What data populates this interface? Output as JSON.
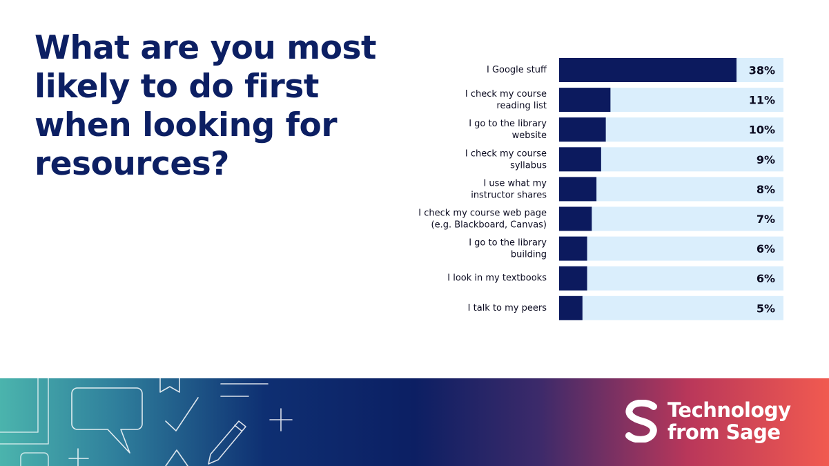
{
  "title": "What are you most likely to do first when looking for resources?",
  "brand": {
    "line1": "Technology",
    "line2": "from Sage"
  },
  "colors": {
    "bar": "#0c1a5e",
    "track": "#daeefc",
    "title": "#0c1f63"
  },
  "chart_data": {
    "type": "bar",
    "orientation": "horizontal",
    "title": "What are you most likely to do first when looking for resources?",
    "xlabel": "",
    "ylabel": "",
    "xlim": [
      0,
      48
    ],
    "categories": [
      [
        "I Google stuff"
      ],
      [
        "I check my course",
        "reading list"
      ],
      [
        "I go to the library",
        "website"
      ],
      [
        "I check my course",
        "syllabus"
      ],
      [
        "I use what my",
        "instructor shares"
      ],
      [
        "I check my course web page",
        "(e.g. Blackboard, Canvas)"
      ],
      [
        "I go to the library",
        "building"
      ],
      [
        "I look in my textbooks"
      ],
      [
        "I talk to my peers"
      ]
    ],
    "values": [
      38,
      11,
      10,
      9,
      8,
      7,
      6,
      6,
      5
    ],
    "value_labels": [
      "38%",
      "11%",
      "10%",
      "9%",
      "8%",
      "7%",
      "6%",
      "6%",
      "5%"
    ]
  }
}
